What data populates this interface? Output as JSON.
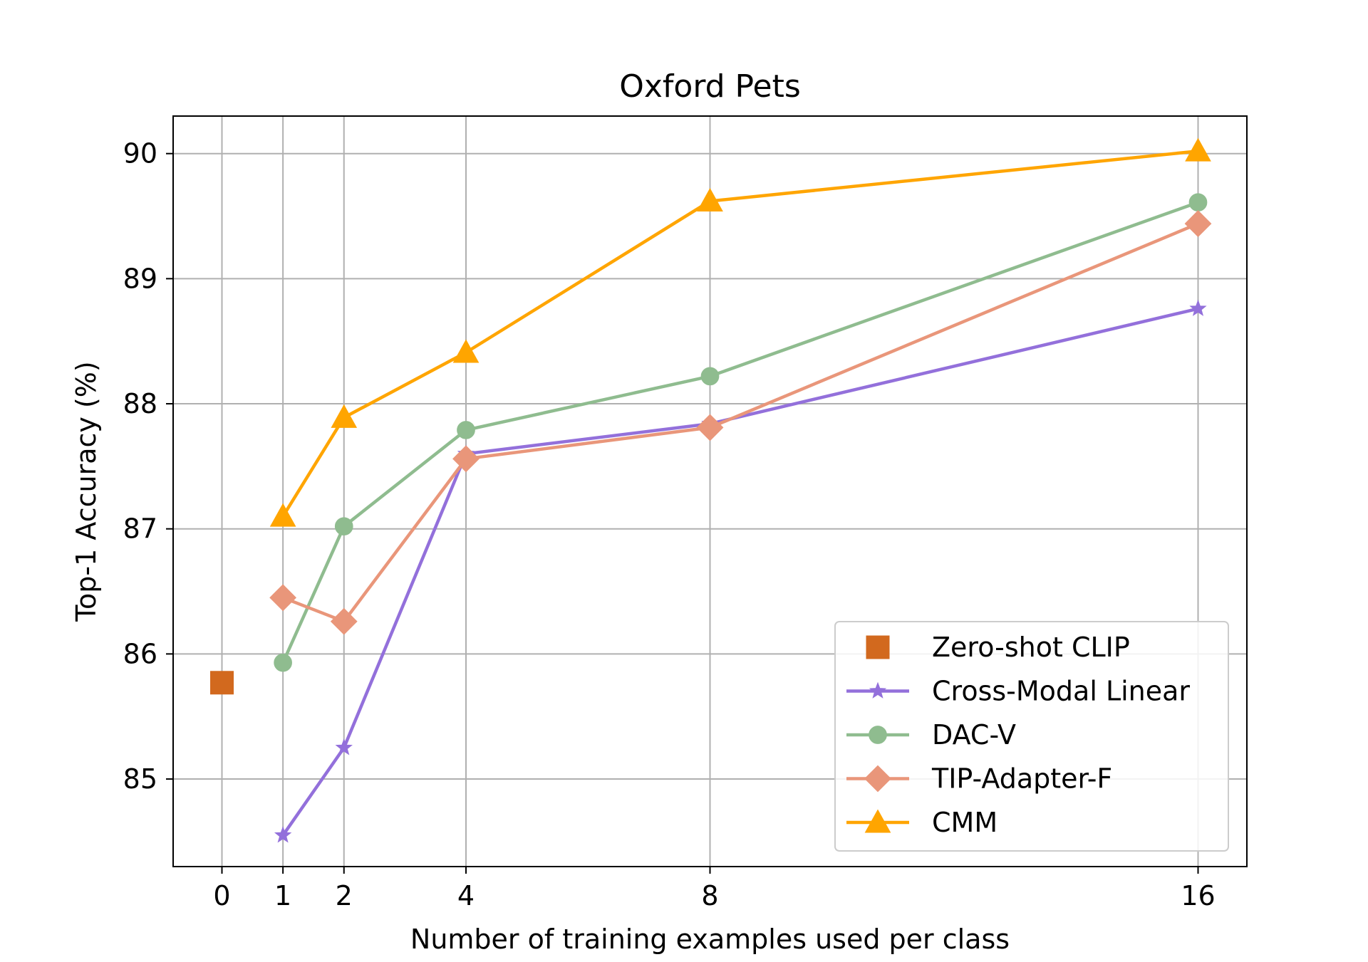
{
  "chart_data": {
    "type": "line",
    "title": "Oxford Pets",
    "xlabel": "Number of training examples used per class",
    "ylabel": "Top-1 Accuracy (%)",
    "xlim": [
      -0.8,
      16.8
    ],
    "ylim": [
      84.3,
      90.3
    ],
    "xticks": [
      0,
      1,
      2,
      4,
      8,
      16
    ],
    "yticks": [
      85,
      86,
      87,
      88,
      89,
      90
    ],
    "grid": true,
    "legend_position": "lower-right",
    "series": [
      {
        "name": "Zero-shot CLIP",
        "color": "#d2691e",
        "marker": "square",
        "line": false,
        "x": [
          0
        ],
        "y": [
          85.77
        ]
      },
      {
        "name": "Cross-Modal Linear",
        "color": "#9370db",
        "marker": "star",
        "line": true,
        "x": [
          1,
          2,
          4,
          8,
          16
        ],
        "y": [
          84.55,
          85.25,
          87.6,
          87.84,
          88.76
        ]
      },
      {
        "name": "DAC-V",
        "color": "#8fbc8f",
        "marker": "circle",
        "line": true,
        "x": [
          1,
          2,
          4,
          8,
          16
        ],
        "y": [
          85.93,
          87.02,
          87.79,
          88.22,
          89.61
        ]
      },
      {
        "name": "TIP-Adapter-F",
        "color": "#e9967a",
        "marker": "diamond",
        "line": true,
        "x": [
          1,
          2,
          4,
          8,
          16
        ],
        "y": [
          86.45,
          86.26,
          87.56,
          87.81,
          89.44
        ]
      },
      {
        "name": "CMM",
        "color": "#ffa500",
        "marker": "triangle",
        "line": true,
        "x": [
          1,
          2,
          4,
          8,
          16
        ],
        "y": [
          87.1,
          87.89,
          88.41,
          89.62,
          90.02
        ]
      }
    ]
  }
}
